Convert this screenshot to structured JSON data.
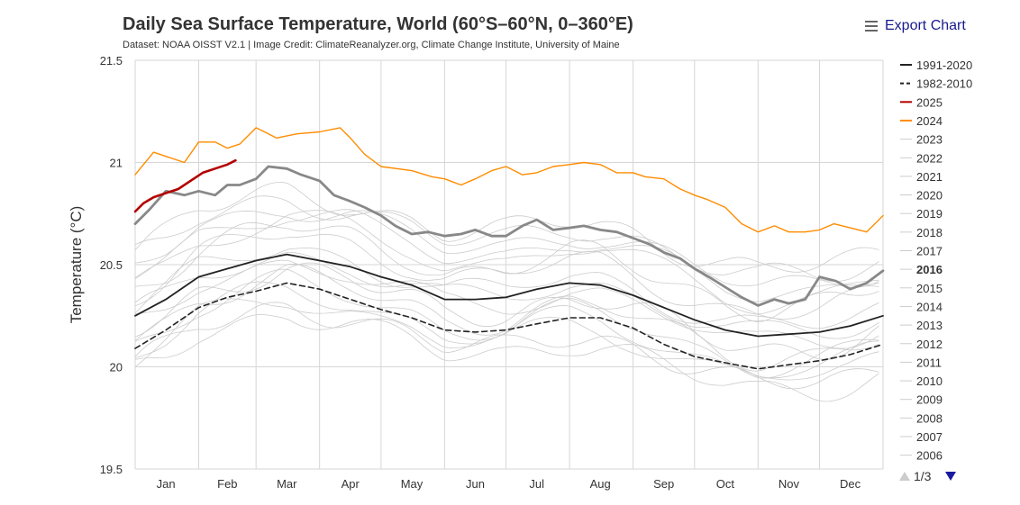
{
  "header": {
    "title": "Daily Sea Surface Temperature, World (60°S–60°N, 0–360°E)",
    "subtitle": "Dataset: NOAA OISST V2.1 | Image Credit: ClimateReanalyzer.org, Climate Change Institute, University of Maine",
    "export_label": "Export Chart",
    "export_icon": "hamburger-menu-icon"
  },
  "legend_pager": {
    "page_text": "1/3"
  },
  "chart_data": {
    "type": "line",
    "title": "Daily Sea Surface Temperature, World (60°S–60°N, 0–360°E)",
    "ylabel": "Temperature (°C)",
    "xlabel": "",
    "ylim": [
      19.5,
      21.5
    ],
    "yticks": [
      "19.5",
      "20",
      "20.5",
      "21",
      "21.5"
    ],
    "xlim": [
      1,
      366
    ],
    "month_labels": [
      "Jan",
      "Feb",
      "Mar",
      "Apr",
      "May",
      "Jun",
      "Jul",
      "Aug",
      "Sep",
      "Oct",
      "Nov",
      "Dec"
    ],
    "month_label_days": [
      16,
      46,
      75,
      106,
      136,
      167,
      197,
      228,
      259,
      289,
      320,
      350
    ],
    "month_boundary_days": [
      1,
      32,
      60,
      91,
      121,
      152,
      182,
      213,
      244,
      274,
      305,
      335,
      366
    ],
    "grid": true,
    "legend_position": "right",
    "series": [
      {
        "name": "1991-2020",
        "color": "#222222",
        "style": "solid",
        "width": 1.8,
        "points": [
          [
            1,
            20.25
          ],
          [
            16,
            20.33
          ],
          [
            32,
            20.44
          ],
          [
            46,
            20.48
          ],
          [
            60,
            20.52
          ],
          [
            75,
            20.55
          ],
          [
            91,
            20.52
          ],
          [
            106,
            20.49
          ],
          [
            121,
            20.44
          ],
          [
            136,
            20.4
          ],
          [
            152,
            20.33
          ],
          [
            167,
            20.33
          ],
          [
            182,
            20.34
          ],
          [
            197,
            20.38
          ],
          [
            213,
            20.41
          ],
          [
            228,
            20.4
          ],
          [
            244,
            20.35
          ],
          [
            259,
            20.29
          ],
          [
            274,
            20.23
          ],
          [
            289,
            20.18
          ],
          [
            305,
            20.15
          ],
          [
            320,
            20.16
          ],
          [
            335,
            20.17
          ],
          [
            350,
            20.2
          ],
          [
            366,
            20.25
          ]
        ]
      },
      {
        "name": "1982-2010",
        "color": "#222222",
        "style": "dashed",
        "width": 1.6,
        "points": [
          [
            1,
            20.09
          ],
          [
            16,
            20.18
          ],
          [
            32,
            20.29
          ],
          [
            46,
            20.34
          ],
          [
            60,
            20.37
          ],
          [
            75,
            20.41
          ],
          [
            91,
            20.38
          ],
          [
            106,
            20.33
          ],
          [
            121,
            20.28
          ],
          [
            136,
            20.24
          ],
          [
            152,
            20.18
          ],
          [
            167,
            20.17
          ],
          [
            182,
            20.18
          ],
          [
            197,
            20.21
          ],
          [
            213,
            20.24
          ],
          [
            228,
            20.24
          ],
          [
            244,
            20.19
          ],
          [
            259,
            20.11
          ],
          [
            274,
            20.05
          ],
          [
            289,
            20.02
          ],
          [
            305,
            19.99
          ],
          [
            320,
            20.01
          ],
          [
            335,
            20.03
          ],
          [
            350,
            20.06
          ],
          [
            366,
            20.11
          ]
        ]
      },
      {
        "name": "2025",
        "color": "#b30000",
        "style": "solid",
        "width": 2.6,
        "points": [
          [
            1,
            20.76
          ],
          [
            5,
            20.8
          ],
          [
            10,
            20.83
          ],
          [
            16,
            20.85
          ],
          [
            22,
            20.87
          ],
          [
            28,
            20.91
          ],
          [
            34,
            20.95
          ],
          [
            40,
            20.97
          ],
          [
            46,
            20.99
          ],
          [
            50,
            21.01
          ]
        ]
      },
      {
        "name": "2024",
        "color": "#ff8c00",
        "style": "solid",
        "width": 1.4,
        "points": [
          [
            1,
            20.94
          ],
          [
            10,
            21.05
          ],
          [
            16,
            21.03
          ],
          [
            25,
            21.0
          ],
          [
            32,
            21.1
          ],
          [
            40,
            21.1
          ],
          [
            46,
            21.07
          ],
          [
            52,
            21.09
          ],
          [
            60,
            21.17
          ],
          [
            70,
            21.12
          ],
          [
            80,
            21.14
          ],
          [
            91,
            21.15
          ],
          [
            101,
            21.17
          ],
          [
            106,
            21.12
          ],
          [
            113,
            21.04
          ],
          [
            121,
            20.98
          ],
          [
            136,
            20.96
          ],
          [
            146,
            20.93
          ],
          [
            152,
            20.92
          ],
          [
            160,
            20.89
          ],
          [
            167,
            20.92
          ],
          [
            175,
            20.96
          ],
          [
            182,
            20.98
          ],
          [
            190,
            20.94
          ],
          [
            197,
            20.95
          ],
          [
            205,
            20.98
          ],
          [
            213,
            20.99
          ],
          [
            220,
            21.0
          ],
          [
            228,
            20.99
          ],
          [
            236,
            20.95
          ],
          [
            244,
            20.95
          ],
          [
            250,
            20.93
          ],
          [
            259,
            20.92
          ],
          [
            267,
            20.87
          ],
          [
            274,
            20.84
          ],
          [
            280,
            20.82
          ],
          [
            289,
            20.78
          ],
          [
            297,
            20.7
          ],
          [
            305,
            20.66
          ],
          [
            313,
            20.69
          ],
          [
            320,
            20.66
          ],
          [
            328,
            20.66
          ],
          [
            335,
            20.67
          ],
          [
            342,
            20.7
          ],
          [
            350,
            20.68
          ],
          [
            358,
            20.66
          ],
          [
            366,
            20.74
          ]
        ]
      },
      {
        "name": "2016",
        "color": "#888888",
        "style": "solid",
        "width": 2.8,
        "points": [
          [
            1,
            20.7
          ],
          [
            8,
            20.77
          ],
          [
            16,
            20.86
          ],
          [
            25,
            20.84
          ],
          [
            32,
            20.86
          ],
          [
            40,
            20.84
          ],
          [
            46,
            20.89
          ],
          [
            52,
            20.89
          ],
          [
            60,
            20.92
          ],
          [
            66,
            20.98
          ],
          [
            75,
            20.97
          ],
          [
            82,
            20.94
          ],
          [
            91,
            20.91
          ],
          [
            98,
            20.84
          ],
          [
            106,
            20.81
          ],
          [
            113,
            20.78
          ],
          [
            121,
            20.74
          ],
          [
            128,
            20.69
          ],
          [
            136,
            20.65
          ],
          [
            144,
            20.66
          ],
          [
            152,
            20.64
          ],
          [
            160,
            20.65
          ],
          [
            167,
            20.67
          ],
          [
            175,
            20.64
          ],
          [
            182,
            20.64
          ],
          [
            190,
            20.69
          ],
          [
            197,
            20.72
          ],
          [
            205,
            20.67
          ],
          [
            213,
            20.68
          ],
          [
            220,
            20.69
          ],
          [
            228,
            20.67
          ],
          [
            236,
            20.66
          ],
          [
            244,
            20.63
          ],
          [
            252,
            20.6
          ],
          [
            259,
            20.56
          ],
          [
            267,
            20.53
          ],
          [
            274,
            20.48
          ],
          [
            281,
            20.44
          ],
          [
            289,
            20.39
          ],
          [
            297,
            20.34
          ],
          [
            305,
            20.3
          ],
          [
            313,
            20.33
          ],
          [
            320,
            20.31
          ],
          [
            328,
            20.33
          ],
          [
            335,
            20.44
          ],
          [
            343,
            20.42
          ],
          [
            350,
            20.38
          ],
          [
            358,
            20.41
          ],
          [
            366,
            20.47
          ]
        ]
      }
    ],
    "background_years": [
      "2023",
      "2022",
      "2021",
      "2020",
      "2019",
      "2018",
      "2017",
      "2015",
      "2014",
      "2013",
      "2012",
      "2011",
      "2010",
      "2009",
      "2008",
      "2007",
      "2006"
    ],
    "legend_items": [
      {
        "label": "1991-2020",
        "color": "#222222",
        "style": "solid",
        "bold": false
      },
      {
        "label": "1982-2010",
        "color": "#222222",
        "style": "dashed",
        "bold": false
      },
      {
        "label": "2025",
        "color": "#b30000",
        "style": "solid",
        "bold": false
      },
      {
        "label": "2024",
        "color": "#ff8c00",
        "style": "solid",
        "bold": false
      },
      {
        "label": "2023",
        "color": "#cccccc",
        "style": "solid",
        "bold": false
      },
      {
        "label": "2022",
        "color": "#cccccc",
        "style": "solid",
        "bold": false
      },
      {
        "label": "2021",
        "color": "#cccccc",
        "style": "solid",
        "bold": false
      },
      {
        "label": "2020",
        "color": "#cccccc",
        "style": "solid",
        "bold": false
      },
      {
        "label": "2019",
        "color": "#cccccc",
        "style": "solid",
        "bold": false
      },
      {
        "label": "2018",
        "color": "#cccccc",
        "style": "solid",
        "bold": false
      },
      {
        "label": "2017",
        "color": "#cccccc",
        "style": "solid",
        "bold": false
      },
      {
        "label": "2016",
        "color": "#cccccc",
        "style": "solid",
        "bold": true
      },
      {
        "label": "2015",
        "color": "#cccccc",
        "style": "solid",
        "bold": false
      },
      {
        "label": "2014",
        "color": "#cccccc",
        "style": "solid",
        "bold": false
      },
      {
        "label": "2013",
        "color": "#cccccc",
        "style": "solid",
        "bold": false
      },
      {
        "label": "2012",
        "color": "#cccccc",
        "style": "solid",
        "bold": false
      },
      {
        "label": "2011",
        "color": "#cccccc",
        "style": "solid",
        "bold": false
      },
      {
        "label": "2010",
        "color": "#cccccc",
        "style": "solid",
        "bold": false
      },
      {
        "label": "2009",
        "color": "#cccccc",
        "style": "solid",
        "bold": false
      },
      {
        "label": "2008",
        "color": "#cccccc",
        "style": "solid",
        "bold": false
      },
      {
        "label": "2007",
        "color": "#cccccc",
        "style": "solid",
        "bold": false
      },
      {
        "label": "2006",
        "color": "#cccccc",
        "style": "solid",
        "bold": false
      }
    ]
  }
}
